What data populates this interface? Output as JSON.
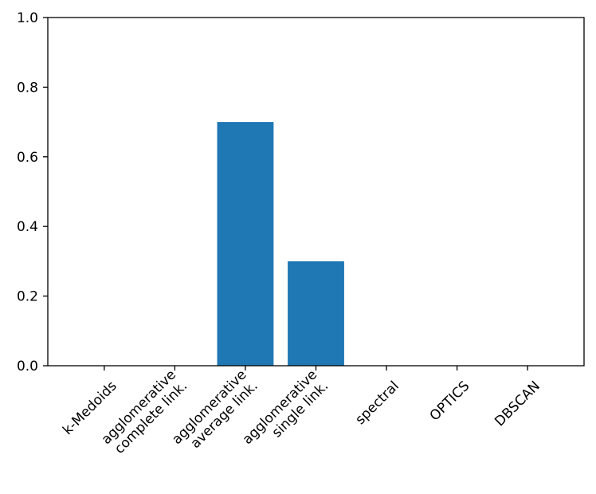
{
  "chart_data": {
    "type": "bar",
    "categories": [
      [
        "k-Medoids"
      ],
      [
        "agglomerative",
        "complete link."
      ],
      [
        "agglomerative",
        "average link."
      ],
      [
        "agglomerative",
        "single link."
      ],
      [
        "spectral"
      ],
      [
        "OPTICS"
      ],
      [
        "DBSCAN"
      ]
    ],
    "values": [
      0,
      0,
      0.7,
      0.3,
      0,
      0,
      0
    ],
    "ylim": [
      0,
      1.0
    ],
    "yticks": [
      "0.0",
      "0.2",
      "0.4",
      "0.6",
      "0.8",
      "1.0"
    ],
    "title": "",
    "xlabel": "",
    "ylabel": "",
    "bar_color": "#1f77b4",
    "grid": false,
    "legend": "none",
    "x_tick_rotation": -45
  }
}
